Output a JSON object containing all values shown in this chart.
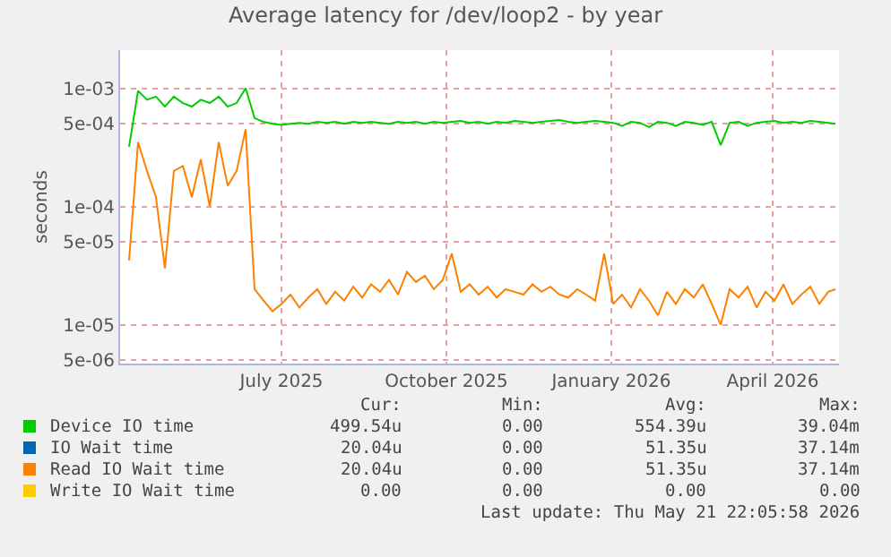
{
  "chart_data": {
    "type": "line",
    "title": "Average latency for /dev/loop2 - by year",
    "ylabel": "seconds",
    "x": [
      "2025-04-22",
      "2025-04-27",
      "2025-05-02",
      "2025-05-07",
      "2025-05-12",
      "2025-05-17",
      "2025-05-22",
      "2025-05-27",
      "2025-06-01",
      "2025-06-06",
      "2025-06-11",
      "2025-06-16",
      "2025-06-21",
      "2025-06-26",
      "2025-07-01",
      "2025-07-06",
      "2025-07-11",
      "2025-07-16",
      "2025-07-21",
      "2025-07-26",
      "2025-07-31",
      "2025-08-05",
      "2025-08-10",
      "2025-08-15",
      "2025-08-20",
      "2025-08-25",
      "2025-08-30",
      "2025-09-04",
      "2025-09-09",
      "2025-09-14",
      "2025-09-19",
      "2025-09-24",
      "2025-09-29",
      "2025-10-04",
      "2025-10-09",
      "2025-10-14",
      "2025-10-19",
      "2025-10-24",
      "2025-10-29",
      "2025-11-03",
      "2025-11-08",
      "2025-11-13",
      "2025-11-18",
      "2025-11-23",
      "2025-11-28",
      "2025-12-03",
      "2025-12-08",
      "2025-12-13",
      "2025-12-18",
      "2025-12-23",
      "2025-12-28",
      "2026-01-02",
      "2026-01-07",
      "2026-01-12",
      "2026-01-17",
      "2026-01-22",
      "2026-01-27",
      "2026-02-01",
      "2026-02-06",
      "2026-02-11",
      "2026-02-16",
      "2026-02-21",
      "2026-02-26",
      "2026-03-03",
      "2026-03-08",
      "2026-03-13",
      "2026-03-18",
      "2026-03-23",
      "2026-03-28",
      "2026-04-02",
      "2026-04-07",
      "2026-04-12",
      "2026-04-17",
      "2026-04-22",
      "2026-04-27",
      "2026-05-02",
      "2026-05-07",
      "2026-05-12",
      "2026-05-17",
      "2026-05-21"
    ],
    "series": [
      {
        "name": "Device IO time",
        "color": "#00cc00",
        "values": [
          0.00032,
          0.00095,
          0.0008,
          0.00085,
          0.0007,
          0.00085,
          0.00075,
          0.0007,
          0.0008,
          0.00075,
          0.00085,
          0.0007,
          0.00075,
          0.001,
          0.00056,
          0.00052,
          0.0005,
          0.00049,
          0.0005,
          0.00051,
          0.0005,
          0.00052,
          0.00051,
          0.00052,
          0.0005,
          0.00052,
          0.00051,
          0.00052,
          0.00051,
          0.0005,
          0.00052,
          0.00051,
          0.00052,
          0.0005,
          0.00052,
          0.00051,
          0.00052,
          0.00053,
          0.00051,
          0.00052,
          0.0005,
          0.00052,
          0.00051,
          0.00053,
          0.00052,
          0.00051,
          0.00052,
          0.00053,
          0.00054,
          0.00052,
          0.00051,
          0.00052,
          0.00053,
          0.00052,
          0.00051,
          0.00048,
          0.00052,
          0.00051,
          0.00047,
          0.00052,
          0.00051,
          0.00048,
          0.00052,
          0.00051,
          0.00049,
          0.00052,
          0.00033,
          0.00051,
          0.00052,
          0.00048,
          0.00051,
          0.00052,
          0.00053,
          0.00051,
          0.00052,
          0.00051,
          0.00053,
          0.00052,
          0.00051,
          0.0005
        ]
      },
      {
        "name": "IO Wait time",
        "color": "#0066b3",
        "values": [
          null,
          null,
          null,
          null,
          null,
          null,
          null,
          null,
          null,
          null,
          null,
          null,
          null,
          null,
          null,
          null,
          null,
          null,
          null,
          null,
          null,
          null,
          null,
          null,
          null,
          null,
          null,
          null,
          null,
          null,
          null,
          null,
          null,
          null,
          null,
          null,
          null,
          null,
          null,
          null,
          null,
          null,
          null,
          null,
          null,
          null,
          null,
          null,
          null,
          null,
          null,
          null,
          null,
          null,
          null,
          null,
          null,
          null,
          null,
          null,
          null,
          null,
          null,
          null,
          null,
          null,
          null,
          null,
          null,
          null,
          null,
          null,
          null,
          null,
          null,
          null,
          null,
          null,
          null,
          null
        ]
      },
      {
        "name": "Read IO Wait time",
        "color": "#ff8000",
        "values": [
          3.5e-05,
          0.00035,
          0.0002,
          0.00012,
          3e-05,
          0.0002,
          0.00022,
          0.00012,
          0.00025,
          0.0001,
          0.00035,
          0.00015,
          0.0002,
          0.00045,
          2e-05,
          1.6e-05,
          1.3e-05,
          1.5e-05,
          1.8e-05,
          1.4e-05,
          1.7e-05,
          2e-05,
          1.5e-05,
          1.9e-05,
          1.6e-05,
          2.1e-05,
          1.7e-05,
          2.2e-05,
          1.9e-05,
          2.4e-05,
          1.8e-05,
          2.8e-05,
          2.3e-05,
          2.6e-05,
          2e-05,
          2.4e-05,
          4e-05,
          1.9e-05,
          2.2e-05,
          1.8e-05,
          2.1e-05,
          1.7e-05,
          2e-05,
          1.9e-05,
          1.8e-05,
          2.2e-05,
          1.9e-05,
          2.1e-05,
          1.8e-05,
          1.7e-05,
          2e-05,
          1.8e-05,
          1.6e-05,
          4e-05,
          1.5e-05,
          1.8e-05,
          1.4e-05,
          2e-05,
          1.6e-05,
          1.2e-05,
          1.9e-05,
          1.5e-05,
          2e-05,
          1.7e-05,
          2.2e-05,
          1.5e-05,
          1e-05,
          2e-05,
          1.7e-05,
          2.1e-05,
          1.4e-05,
          1.9e-05,
          1.6e-05,
          2.2e-05,
          1.5e-05,
          1.8e-05,
          2.1e-05,
          1.5e-05,
          1.9e-05,
          2e-05
        ]
      },
      {
        "name": "Write IO Wait time",
        "color": "#ffcc00",
        "values": [
          null,
          null,
          null,
          null,
          null,
          null,
          null,
          null,
          null,
          null,
          null,
          null,
          null,
          null,
          null,
          null,
          null,
          null,
          null,
          null,
          null,
          null,
          null,
          null,
          null,
          null,
          null,
          null,
          null,
          null,
          null,
          null,
          null,
          null,
          null,
          null,
          null,
          null,
          null,
          null,
          null,
          null,
          null,
          null,
          null,
          null,
          null,
          null,
          null,
          null,
          null,
          null,
          null,
          null,
          null,
          null,
          null,
          null,
          null,
          null,
          null,
          null,
          null,
          null,
          null,
          null,
          null,
          null,
          null,
          null,
          null,
          null,
          null,
          null,
          null,
          null,
          null,
          null,
          null,
          null
        ]
      }
    ],
    "log": true,
    "xlim": [
      "2025-04-17",
      "2026-05-23"
    ],
    "xticks": [
      {
        "value": "2025-07-16",
        "label": "July 2025"
      },
      {
        "value": "2025-10-16",
        "label": "October 2025"
      },
      {
        "value": "2026-01-16",
        "label": "January 2026"
      },
      {
        "value": "2026-04-16",
        "label": "April 2026"
      }
    ],
    "ylim": [
      4.7e-06,
      0.0021
    ],
    "yticks": [
      {
        "value": 0.001,
        "label": "1e-03"
      },
      {
        "value": 0.0005,
        "label": "5e-04"
      },
      {
        "value": 0.0001,
        "label": "1e-04"
      },
      {
        "value": 5e-05,
        "label": "5e-05"
      },
      {
        "value": 1e-05,
        "label": "1e-05"
      },
      {
        "value": 5e-06,
        "label": "5e-06"
      }
    ],
    "grid": true,
    "legend": "bottom",
    "line_style": "solid",
    "annotations": [
      "Cur:",
      "Min:",
      "Avg:",
      "Max:",
      "499.54u",
      "0.00",
      "554.39u",
      "39.04m",
      "20.04u",
      "0.00",
      "51.35u",
      "37.14m",
      "20.04u",
      "0.00",
      "51.35u",
      "37.14m",
      "0.00",
      "0.00",
      "0.00",
      "0.00",
      "Last update: Thu May 21 22:05:58 2026"
    ]
  }
}
